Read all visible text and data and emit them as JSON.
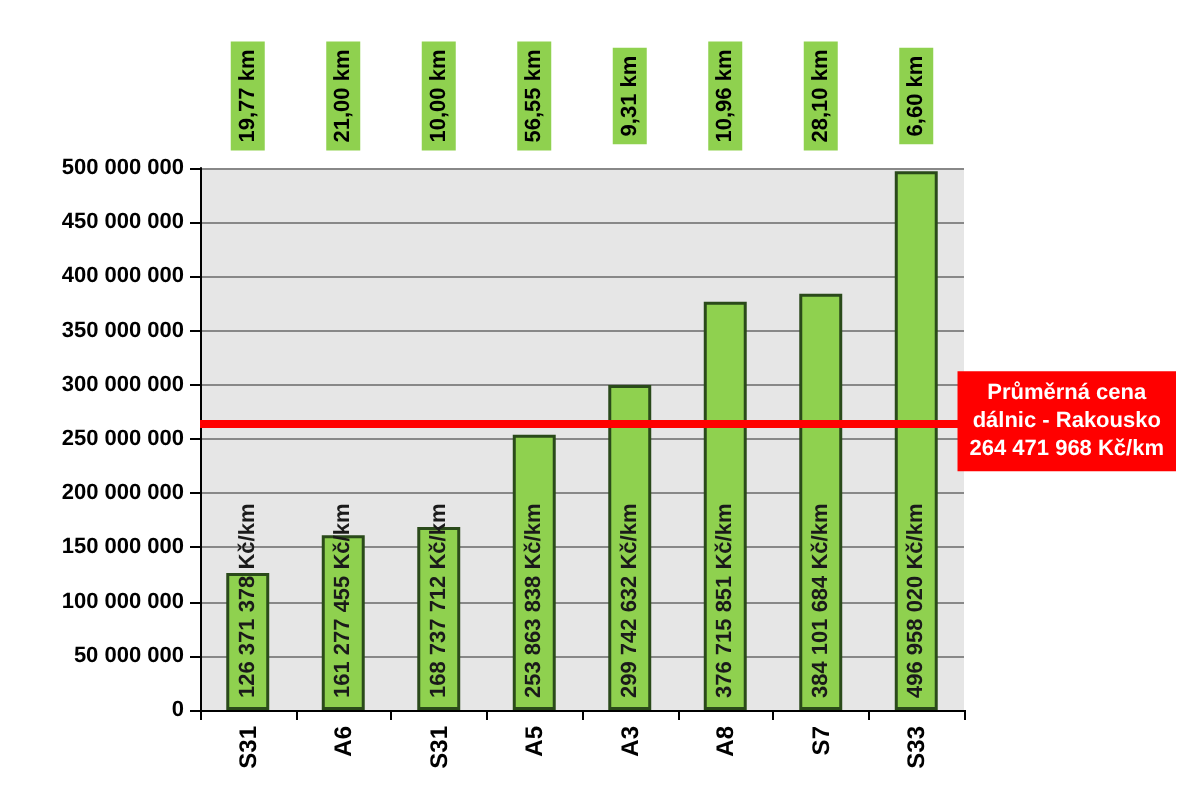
{
  "chart_data": {
    "type": "bar",
    "categories": [
      "S31",
      "A6",
      "S31",
      "A5",
      "A3",
      "A8",
      "S7",
      "S33"
    ],
    "values": [
      126371378,
      161277455,
      168737712,
      253863838,
      299742632,
      376715851,
      384101684,
      496958020
    ],
    "value_labels": [
      "126 371 378 Kč/km",
      "161 277 455 Kč/km",
      "168 737 712 Kč/km",
      "253 863 838 Kč/km",
      "299 742 632 Kč/km",
      "376 715 851 Kč/km",
      "384 101 684 Kč/km",
      "496 958 020 Kč/km"
    ],
    "color": "#8fd14f",
    "ylim": [
      0,
      500000000
    ],
    "yticks": [
      0,
      50000000,
      100000000,
      150000000,
      200000000,
      250000000,
      300000000,
      350000000,
      400000000,
      450000000,
      500000000
    ],
    "grid": "y",
    "ref_lines": [
      {
        "axis": "y",
        "value": 264471968,
        "label": "Průměrná cena\ndálnic - Rakousko\n264 471 968 Kč/km",
        "color": "#ff0000"
      }
    ],
    "annotations": [
      "19,77 km",
      "21,00 km",
      "10,00 km",
      "56,55 km",
      "9,31 km",
      "10,96 km",
      "28,10 km",
      "6,60 km"
    ]
  }
}
